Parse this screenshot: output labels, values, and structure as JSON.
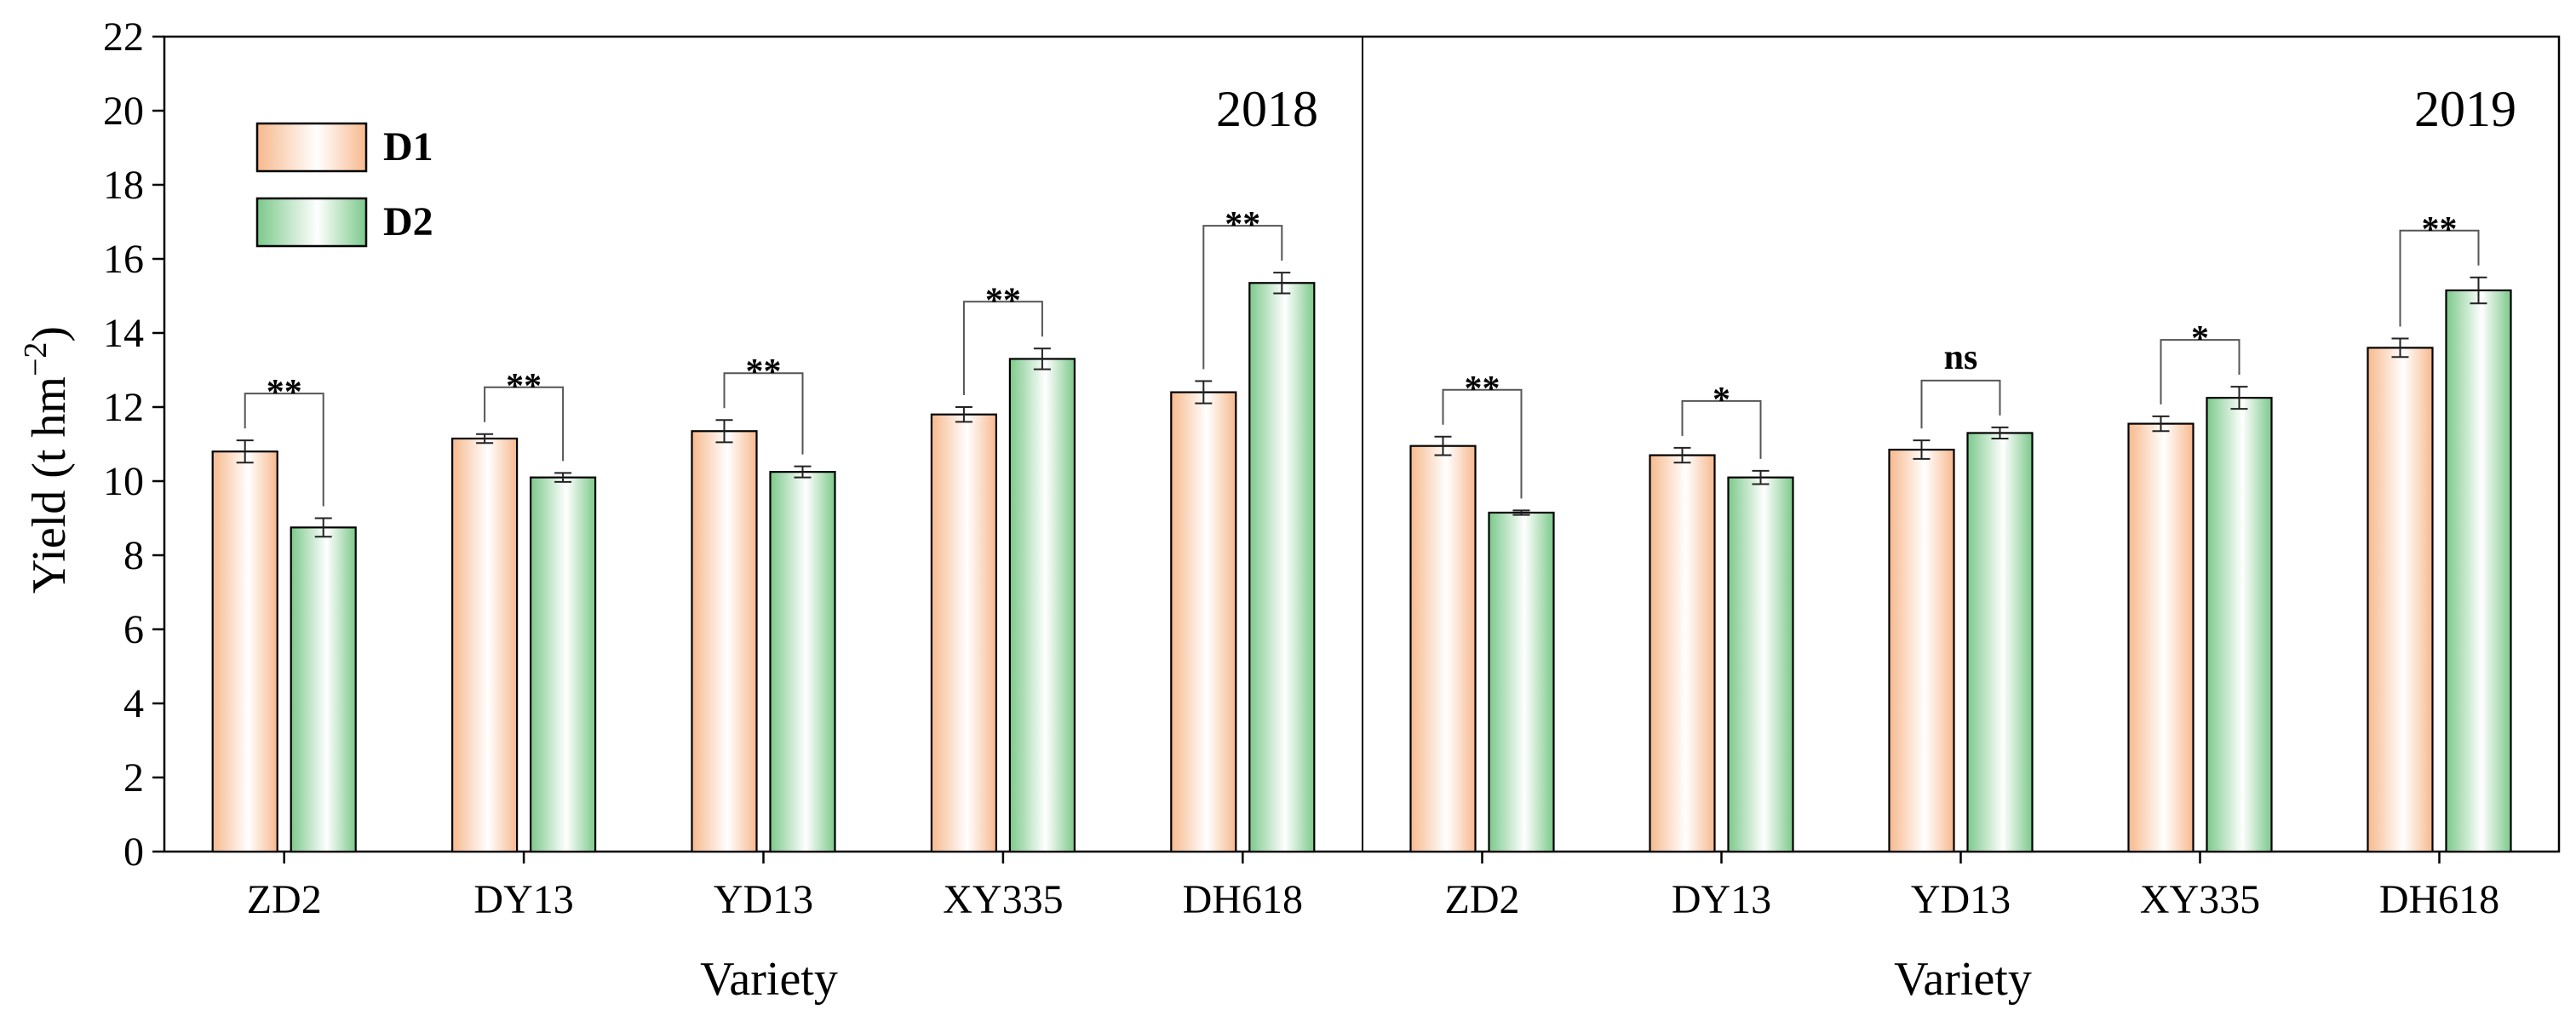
{
  "chart_data": {
    "type": "bar",
    "ylabel": "Yield (t hm",
    "ylabel_sup": "−2",
    "ylabel_close": ")",
    "ylim": [
      0,
      22
    ],
    "yticks": [
      "0",
      "2",
      "4",
      "6",
      "8",
      "10",
      "12",
      "14",
      "16",
      "18",
      "20",
      "22"
    ],
    "legend": [
      {
        "name": "D1",
        "color": "#F7B98E"
      },
      {
        "name": "D2",
        "color": "#7CC98B"
      }
    ],
    "panels": [
      {
        "year": "2018",
        "xlabel": "Variety",
        "categories": [
          "ZD2",
          "DY13",
          "YD13",
          "XY335",
          "DH618"
        ],
        "series": [
          {
            "name": "D1",
            "values": [
              10.8,
              11.15,
              11.35,
              11.8,
              12.4
            ],
            "errors": [
              0.3,
              0.12,
              0.3,
              0.2,
              0.3
            ]
          },
          {
            "name": "D2",
            "values": [
              8.75,
              10.1,
              10.25,
              13.3,
              15.35
            ],
            "errors": [
              0.25,
              0.12,
              0.15,
              0.28,
              0.28
            ]
          }
        ],
        "significance": [
          "**",
          "**",
          "**",
          "**",
          "**"
        ]
      },
      {
        "year": "2019",
        "xlabel": "Variety",
        "categories": [
          "ZD2",
          "DY13",
          "YD13",
          "XY335",
          "DH618"
        ],
        "series": [
          {
            "name": "D1",
            "values": [
              10.95,
              10.7,
              10.85,
              11.55,
              13.6
            ],
            "errors": [
              0.25,
              0.2,
              0.25,
              0.2,
              0.25
            ]
          },
          {
            "name": "D2",
            "values": [
              9.15,
              10.1,
              11.3,
              12.25,
              15.15
            ],
            "errors": [
              0.06,
              0.18,
              0.15,
              0.3,
              0.35
            ]
          }
        ],
        "significance": [
          "**",
          "*",
          "ns",
          "*",
          "**"
        ]
      }
    ]
  }
}
